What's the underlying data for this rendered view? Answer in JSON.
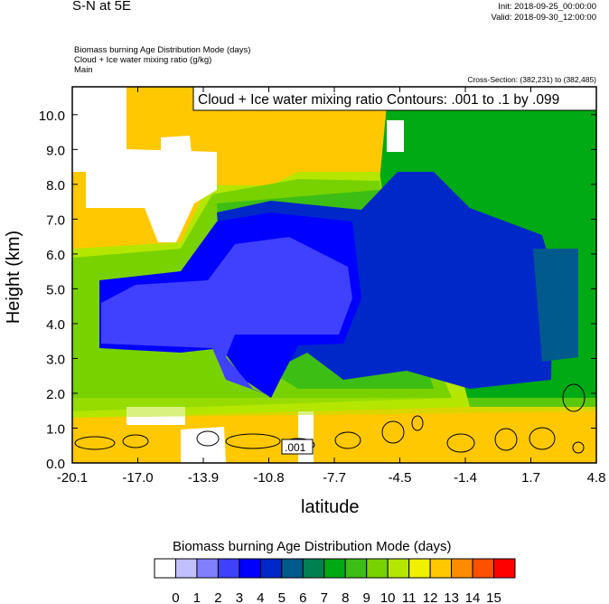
{
  "header": {
    "title": "S-N at 5E",
    "init": "Init: 2018-09-25_00:00:00",
    "valid": "Valid: 2018-09-30_12:00:00",
    "fields": [
      "Biomass burning Age Distribution Mode   (days)",
      "Cloud + Ice water mixing ratio   (g/kg)",
      "Main"
    ],
    "cross_section": "Cross-Section: (382,231) to (382,485)"
  },
  "chart_data": {
    "type": "heatmap",
    "title": "S-N at 5E",
    "xlabel": "latitude",
    "ylabel": "Height (km)",
    "xlim": [
      -20.1,
      4.8
    ],
    "ylim": [
      0,
      10.8
    ],
    "xticks": [
      "-20.1",
      "-17.0",
      "-13.9",
      "-10.8",
      "-7.7",
      "-4.5",
      "-1.4",
      "1.7",
      "4.8"
    ],
    "yticks": [
      "0.0",
      "1.0",
      "2.0",
      "3.0",
      "4.0",
      "5.0",
      "6.0",
      "7.0",
      "8.0",
      "9.0",
      "10.0"
    ],
    "contour_title": "Cloud + Ice water mixing ratio Contours: .001 to .1 by .099",
    "contour_label": ".001",
    "colorbar": {
      "title": "Biomass burning Age Distribution Mode  (days)",
      "labels": [
        "0",
        "1",
        "2",
        "3",
        "4",
        "5",
        "6",
        "7",
        "8",
        "9",
        "10",
        "11",
        "12",
        "13",
        "14",
        "15"
      ],
      "colors": [
        "#ffffff",
        "#c0c0ff",
        "#8080ff",
        "#4040ff",
        "#0000ff",
        "#0028c8",
        "#005a8c",
        "#008050",
        "#00aa14",
        "#3cbe14",
        "#78d200",
        "#b4e600",
        "#f0f000",
        "#ffc800",
        "#ff8c00",
        "#ff5000",
        "#ff0000"
      ]
    }
  }
}
